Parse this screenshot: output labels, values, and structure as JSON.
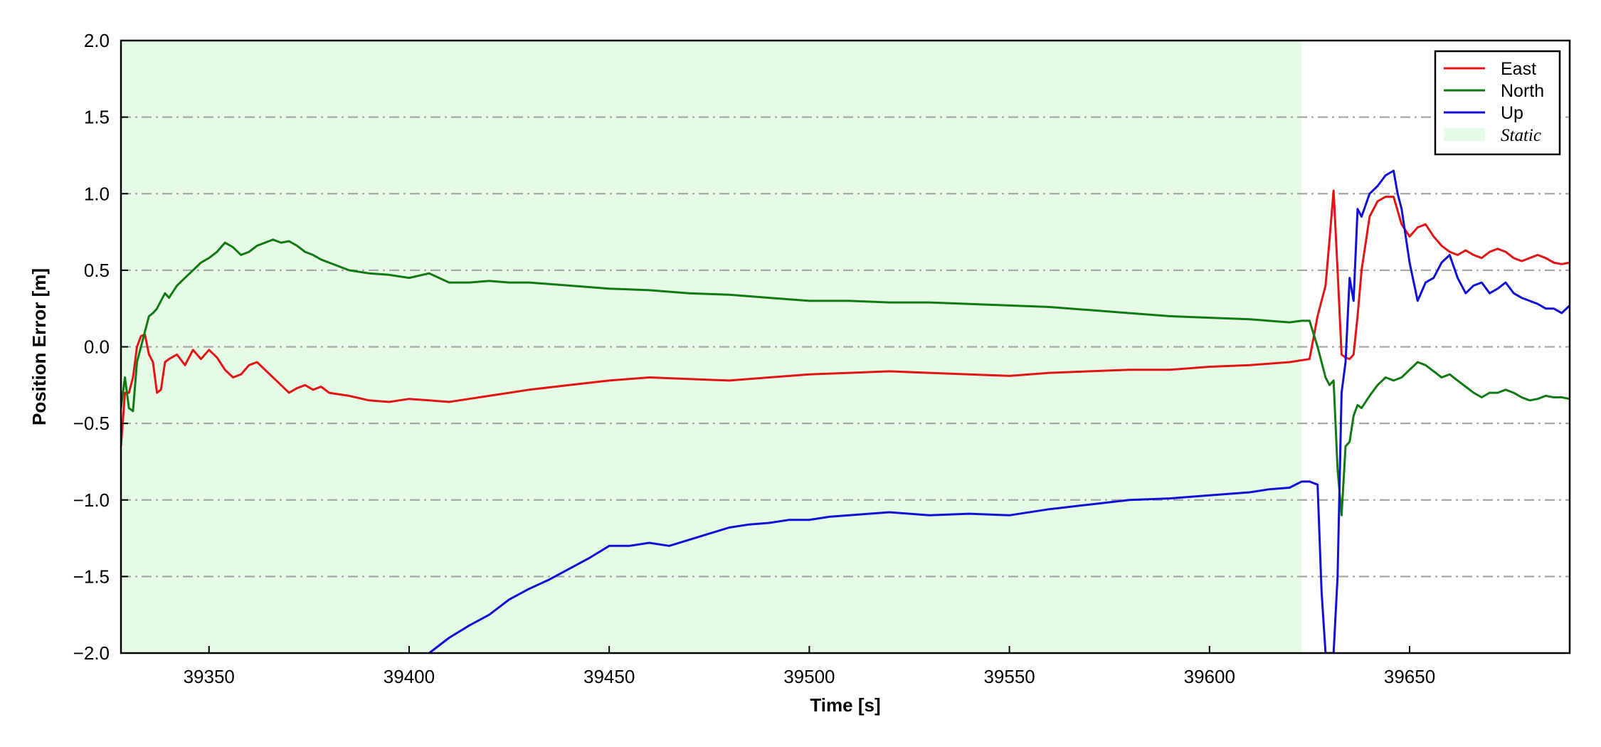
{
  "chart_data": {
    "type": "line",
    "xlabel": "Time [s]",
    "ylabel": "Position Error [m]",
    "xlim": [
      39328,
      39690
    ],
    "ylim": [
      -2.0,
      2.0
    ],
    "xticks": [
      39350,
      39400,
      39450,
      39500,
      39550,
      39600,
      39650
    ],
    "xtick_labels": [
      "39350",
      "39400",
      "39450",
      "39500",
      "39550",
      "39600",
      "39650"
    ],
    "yticks": [
      -2.0,
      -1.5,
      -1.0,
      -0.5,
      0.0,
      0.5,
      1.0,
      1.5,
      2.0
    ],
    "ytick_labels": [
      "−2.0",
      "−1.5",
      "−1.0",
      "−0.5",
      "0.0",
      "0.5",
      "1.0",
      "1.5",
      "2.0"
    ],
    "grid": "horizontal dash-dot",
    "legend_position": "top-right",
    "shaded_region": {
      "name": "Static",
      "x_start": 39328,
      "x_end": 39623,
      "color": "#e6fbe6"
    },
    "series": [
      {
        "name": "East",
        "color": "#e41414",
        "x": [
          39328,
          39329,
          39330,
          39331,
          39332,
          39333,
          39334,
          39335,
          39336,
          39337,
          39338,
          39339,
          39340,
          39342,
          39344,
          39346,
          39348,
          39350,
          39352,
          39354,
          39356,
          39358,
          39360,
          39362,
          39364,
          39366,
          39368,
          39370,
          39372,
          39374,
          39376,
          39378,
          39380,
          39385,
          39390,
          39395,
          39400,
          39405,
          39410,
          39415,
          39420,
          39425,
          39430,
          39440,
          39450,
          39460,
          39470,
          39480,
          39490,
          39500,
          39510,
          39520,
          39530,
          39540,
          39550,
          39560,
          39570,
          39580,
          39590,
          39600,
          39610,
          39620,
          39625,
          39627,
          39629,
          39630,
          39631,
          39632,
          39633,
          39634,
          39635,
          39636,
          39637,
          39638,
          39640,
          39642,
          39644,
          39646,
          39648,
          39650,
          39652,
          39654,
          39656,
          39658,
          39660,
          39662,
          39664,
          39666,
          39668,
          39670,
          39672,
          39674,
          39676,
          39678,
          39680,
          39682,
          39684,
          39686,
          39688,
          39690
        ],
        "y": [
          -0.65,
          -0.3,
          -0.3,
          -0.2,
          0.0,
          0.07,
          0.08,
          -0.05,
          -0.1,
          -0.3,
          -0.28,
          -0.1,
          -0.08,
          -0.05,
          -0.12,
          -0.02,
          -0.08,
          -0.02,
          -0.07,
          -0.15,
          -0.2,
          -0.18,
          -0.12,
          -0.1,
          -0.15,
          -0.2,
          -0.25,
          -0.3,
          -0.27,
          -0.25,
          -0.28,
          -0.26,
          -0.3,
          -0.32,
          -0.35,
          -0.36,
          -0.34,
          -0.35,
          -0.36,
          -0.34,
          -0.32,
          -0.3,
          -0.28,
          -0.25,
          -0.22,
          -0.2,
          -0.21,
          -0.22,
          -0.2,
          -0.18,
          -0.17,
          -0.16,
          -0.17,
          -0.18,
          -0.19,
          -0.17,
          -0.16,
          -0.15,
          -0.15,
          -0.13,
          -0.12,
          -0.1,
          -0.08,
          0.2,
          0.4,
          0.7,
          1.02,
          0.5,
          -0.05,
          -0.07,
          -0.08,
          -0.05,
          0.2,
          0.5,
          0.85,
          0.95,
          0.98,
          0.98,
          0.8,
          0.72,
          0.78,
          0.8,
          0.72,
          0.66,
          0.62,
          0.6,
          0.63,
          0.6,
          0.58,
          0.62,
          0.64,
          0.62,
          0.58,
          0.56,
          0.58,
          0.6,
          0.58,
          0.55,
          0.54,
          0.55
        ]
      },
      {
        "name": "North",
        "color": "#127a12",
        "x": [
          39328,
          39329,
          39330,
          39331,
          39332,
          39333,
          39334,
          39335,
          39336,
          39337,
          39338,
          39339,
          39340,
          39342,
          39344,
          39346,
          39348,
          39350,
          39352,
          39354,
          39356,
          39358,
          39360,
          39362,
          39364,
          39366,
          39368,
          39370,
          39372,
          39374,
          39376,
          39378,
          39380,
          39385,
          39390,
          39395,
          39400,
          39405,
          39410,
          39415,
          39420,
          39425,
          39430,
          39440,
          39450,
          39460,
          39470,
          39480,
          39490,
          39500,
          39510,
          39520,
          39530,
          39540,
          39550,
          39560,
          39570,
          39580,
          39590,
          39600,
          39610,
          39620,
          39623,
          39625,
          39627,
          39629,
          39630,
          39631,
          39632,
          39633,
          39634,
          39635,
          39636,
          39637,
          39638,
          39640,
          39642,
          39644,
          39646,
          39648,
          39650,
          39652,
          39654,
          39656,
          39658,
          39660,
          39662,
          39664,
          39666,
          39668,
          39670,
          39672,
          39674,
          39676,
          39678,
          39680,
          39682,
          39684,
          39686,
          39688,
          39690
        ],
        "y": [
          -0.4,
          -0.2,
          -0.4,
          -0.42,
          -0.1,
          0.0,
          0.1,
          0.2,
          0.22,
          0.25,
          0.3,
          0.35,
          0.32,
          0.4,
          0.45,
          0.5,
          0.55,
          0.58,
          0.62,
          0.68,
          0.65,
          0.6,
          0.62,
          0.66,
          0.68,
          0.7,
          0.68,
          0.69,
          0.66,
          0.62,
          0.6,
          0.57,
          0.55,
          0.5,
          0.48,
          0.47,
          0.45,
          0.48,
          0.42,
          0.42,
          0.43,
          0.42,
          0.42,
          0.4,
          0.38,
          0.37,
          0.35,
          0.34,
          0.32,
          0.3,
          0.3,
          0.29,
          0.29,
          0.28,
          0.27,
          0.26,
          0.24,
          0.22,
          0.2,
          0.19,
          0.18,
          0.16,
          0.17,
          0.17,
          0.0,
          -0.2,
          -0.25,
          -0.22,
          -0.8,
          -1.1,
          -0.65,
          -0.62,
          -0.45,
          -0.38,
          -0.4,
          -0.32,
          -0.25,
          -0.2,
          -0.22,
          -0.2,
          -0.15,
          -0.1,
          -0.12,
          -0.16,
          -0.2,
          -0.18,
          -0.22,
          -0.26,
          -0.3,
          -0.33,
          -0.3,
          -0.3,
          -0.28,
          -0.3,
          -0.33,
          -0.35,
          -0.34,
          -0.32,
          -0.33,
          -0.33,
          -0.34
        ]
      },
      {
        "name": "Up",
        "color": "#1010d8",
        "x": [
          39405,
          39410,
          39415,
          39420,
          39425,
          39430,
          39435,
          39440,
          39445,
          39450,
          39455,
          39460,
          39465,
          39470,
          39475,
          39480,
          39485,
          39490,
          39495,
          39500,
          39505,
          39510,
          39515,
          39520,
          39525,
          39530,
          39540,
          39550,
          39560,
          39570,
          39580,
          39590,
          39600,
          39610,
          39615,
          39620,
          39623,
          39625,
          39627,
          39628,
          39629,
          39630,
          39631,
          39632,
          39633,
          39634,
          39635,
          39636,
          39637,
          39638,
          39640,
          39642,
          39644,
          39646,
          39647,
          39648,
          39650,
          39652,
          39654,
          39656,
          39658,
          39660,
          39662,
          39664,
          39666,
          39668,
          39670,
          39672,
          39674,
          39676,
          39678,
          39680,
          39682,
          39684,
          39686,
          39688,
          39690
        ],
        "y": [
          -2.0,
          -1.9,
          -1.82,
          -1.75,
          -1.65,
          -1.58,
          -1.52,
          -1.45,
          -1.38,
          -1.3,
          -1.3,
          -1.28,
          -1.3,
          -1.26,
          -1.22,
          -1.18,
          -1.16,
          -1.15,
          -1.13,
          -1.13,
          -1.11,
          -1.1,
          -1.09,
          -1.08,
          -1.09,
          -1.1,
          -1.09,
          -1.1,
          -1.06,
          -1.03,
          -1.0,
          -0.99,
          -0.97,
          -0.95,
          -0.93,
          -0.92,
          -0.88,
          -0.88,
          -0.9,
          -1.6,
          -2.0,
          -2.0,
          -2.0,
          -1.5,
          -0.3,
          -0.1,
          0.45,
          0.3,
          0.9,
          0.85,
          1.0,
          1.05,
          1.12,
          1.15,
          1.0,
          0.9,
          0.55,
          0.3,
          0.42,
          0.45,
          0.55,
          0.6,
          0.45,
          0.35,
          0.4,
          0.42,
          0.35,
          0.38,
          0.42,
          0.35,
          0.32,
          0.3,
          0.28,
          0.25,
          0.25,
          0.22,
          0.27
        ]
      }
    ]
  }
}
